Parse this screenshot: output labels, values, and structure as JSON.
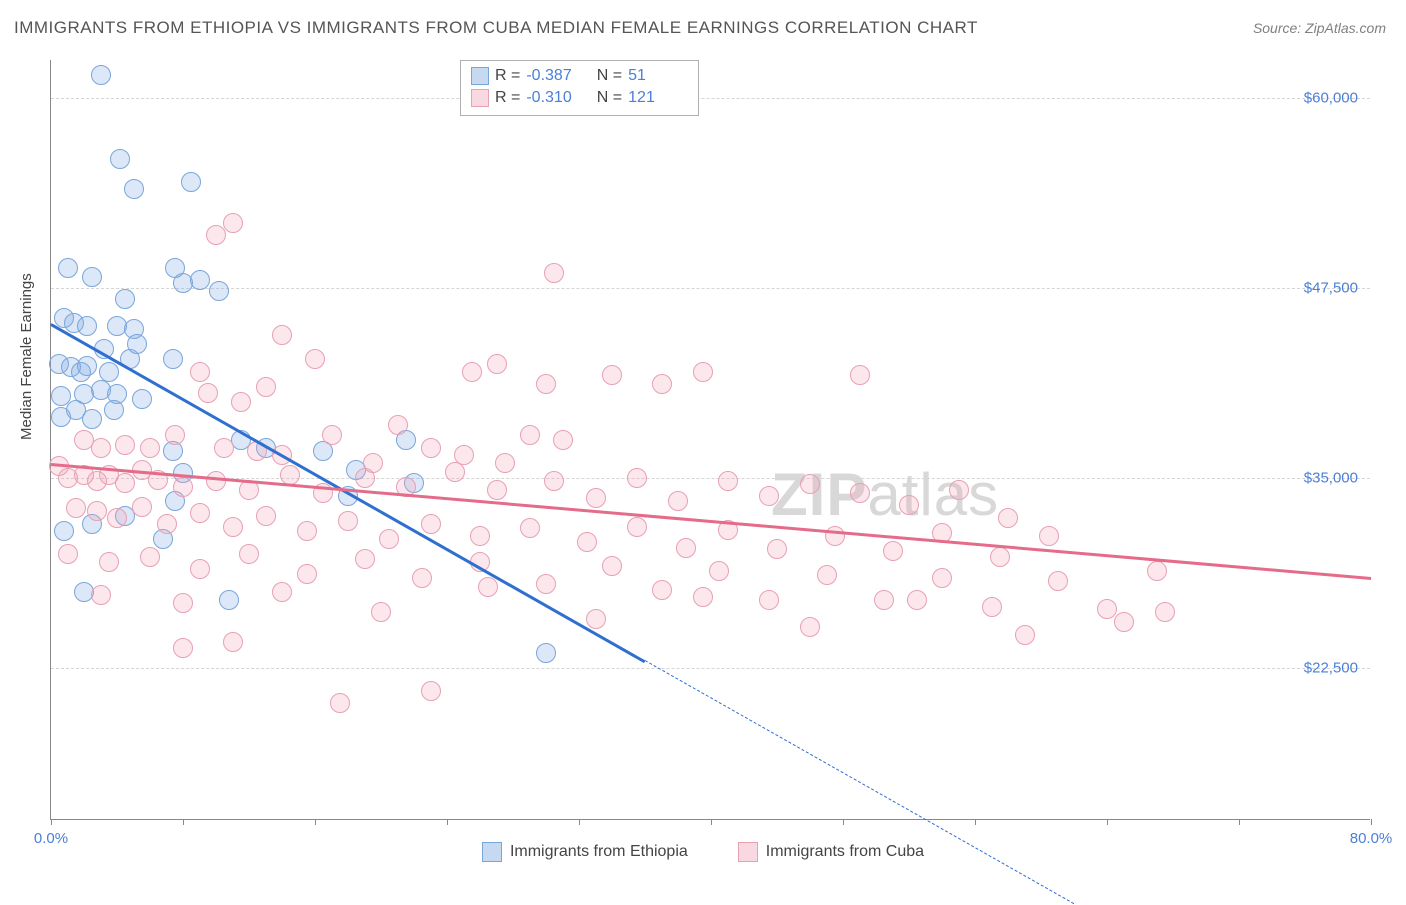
{
  "title": "IMMIGRANTS FROM ETHIOPIA VS IMMIGRANTS FROM CUBA MEDIAN FEMALE EARNINGS CORRELATION CHART",
  "source": "Source: ZipAtlas.com",
  "ylabel": "Median Female Earnings",
  "watermark": {
    "bold": "ZIP",
    "rest": "atlas"
  },
  "chart": {
    "type": "scatter",
    "background_color": "#ffffff",
    "grid_color": "#d5d5d5",
    "xlim": [
      0,
      80
    ],
    "ylim": [
      12500,
      62500
    ],
    "xtick_label_left": "0.0%",
    "xtick_label_right": "80.0%",
    "xtick_positions": [
      0,
      8,
      16,
      24,
      32,
      40,
      48,
      56,
      64,
      72,
      80
    ],
    "yticks": [
      {
        "v": 22500,
        "label": "$22,500"
      },
      {
        "v": 35000,
        "label": "$35,000"
      },
      {
        "v": 47500,
        "label": "$47,500"
      },
      {
        "v": 60000,
        "label": "$60,000"
      }
    ],
    "series": [
      {
        "id": "ethiopia",
        "label": "Immigrants from Ethiopia",
        "color_fill": "rgba(130,170,225,0.45)",
        "color_stroke": "#7aa6db",
        "trend_color": "#2f6fd0",
        "R": "-0.387",
        "N": "51",
        "trend": {
          "x1": 0,
          "y1": 45200,
          "x2": 36,
          "y2": 23000
        },
        "trend_ext": {
          "x1": 36,
          "y1": 23000,
          "x2": 62,
          "y2": 7000
        },
        "points": [
          [
            3.0,
            61500
          ],
          [
            4.2,
            56000
          ],
          [
            5.0,
            54000
          ],
          [
            8.5,
            54500
          ],
          [
            1.0,
            48800
          ],
          [
            2.5,
            48200
          ],
          [
            0.8,
            45500
          ],
          [
            1.4,
            45200
          ],
          [
            2.2,
            45000
          ],
          [
            4.5,
            46800
          ],
          [
            4.0,
            45000
          ],
          [
            5.0,
            44800
          ],
          [
            7.5,
            48800
          ],
          [
            8.0,
            47800
          ],
          [
            9.0,
            48000
          ],
          [
            10.2,
            47300
          ],
          [
            3.2,
            43500
          ],
          [
            0.5,
            42500
          ],
          [
            1.2,
            42300
          ],
          [
            1.8,
            42000
          ],
          [
            2.2,
            42400
          ],
          [
            3.5,
            42000
          ],
          [
            4.8,
            42800
          ],
          [
            5.2,
            43800
          ],
          [
            4.0,
            40500
          ],
          [
            3.0,
            40800
          ],
          [
            2.0,
            40500
          ],
          [
            0.6,
            40400
          ],
          [
            0.6,
            39000
          ],
          [
            1.5,
            39500
          ],
          [
            2.5,
            38900
          ],
          [
            3.8,
            39500
          ],
          [
            5.5,
            40200
          ],
          [
            7.4,
            42800
          ],
          [
            7.4,
            36800
          ],
          [
            8.0,
            35300
          ],
          [
            11.5,
            37500
          ],
          [
            13.0,
            37000
          ],
          [
            16.5,
            36800
          ],
          [
            18.5,
            35500
          ],
          [
            18.0,
            33800
          ],
          [
            21.5,
            37500
          ],
          [
            22.0,
            34700
          ],
          [
            7.5,
            33500
          ],
          [
            4.5,
            32500
          ],
          [
            2.5,
            32000
          ],
          [
            0.8,
            31500
          ],
          [
            6.8,
            31000
          ],
          [
            2.0,
            27500
          ],
          [
            10.8,
            27000
          ],
          [
            30.0,
            23500
          ]
        ]
      },
      {
        "id": "cuba",
        "label": "Immigrants from Cuba",
        "color_fill": "rgba(240,160,180,0.40)",
        "color_stroke": "#e8a0b5",
        "trend_color": "#e56b8a",
        "R": "-0.310",
        "N": "121",
        "trend": {
          "x1": 0,
          "y1": 36000,
          "x2": 80,
          "y2": 28500
        },
        "points": [
          [
            10.0,
            51000
          ],
          [
            11.0,
            51800
          ],
          [
            30.5,
            48500
          ],
          [
            14.0,
            44400
          ],
          [
            16.0,
            42800
          ],
          [
            13.0,
            41000
          ],
          [
            9.0,
            42000
          ],
          [
            9.5,
            40600
          ],
          [
            11.5,
            40000
          ],
          [
            25.5,
            42000
          ],
          [
            27.0,
            42500
          ],
          [
            30.0,
            41200
          ],
          [
            34.0,
            41800
          ],
          [
            37.0,
            41200
          ],
          [
            39.5,
            42000
          ],
          [
            49.0,
            41800
          ],
          [
            2.0,
            37500
          ],
          [
            3.0,
            37000
          ],
          [
            4.5,
            37200
          ],
          [
            6.0,
            37000
          ],
          [
            7.5,
            37800
          ],
          [
            10.5,
            37000
          ],
          [
            12.5,
            36800
          ],
          [
            14.0,
            36500
          ],
          [
            17.0,
            37800
          ],
          [
            19.5,
            36000
          ],
          [
            21.0,
            38500
          ],
          [
            23.0,
            37000
          ],
          [
            25.0,
            36500
          ],
          [
            27.5,
            36000
          ],
          [
            29.0,
            37800
          ],
          [
            31.0,
            37500
          ],
          [
            0.5,
            35800
          ],
          [
            1.0,
            35000
          ],
          [
            2.0,
            35200
          ],
          [
            2.8,
            34800
          ],
          [
            3.5,
            35200
          ],
          [
            4.5,
            34700
          ],
          [
            5.5,
            35500
          ],
          [
            6.5,
            34900
          ],
          [
            8.0,
            34400
          ],
          [
            10.0,
            34800
          ],
          [
            12.0,
            34200
          ],
          [
            14.5,
            35200
          ],
          [
            16.5,
            34000
          ],
          [
            19.0,
            35000
          ],
          [
            21.5,
            34400
          ],
          [
            24.5,
            35400
          ],
          [
            27.0,
            34200
          ],
          [
            30.5,
            34800
          ],
          [
            33.0,
            33700
          ],
          [
            35.5,
            35000
          ],
          [
            38.0,
            33500
          ],
          [
            41.0,
            34800
          ],
          [
            43.5,
            33800
          ],
          [
            46.0,
            34600
          ],
          [
            49.0,
            34000
          ],
          [
            52.0,
            33200
          ],
          [
            55.0,
            34200
          ],
          [
            58.0,
            32400
          ],
          [
            1.5,
            33000
          ],
          [
            2.8,
            32800
          ],
          [
            4.0,
            32400
          ],
          [
            5.5,
            33100
          ],
          [
            7.0,
            32000
          ],
          [
            9.0,
            32700
          ],
          [
            11.0,
            31800
          ],
          [
            13.0,
            32500
          ],
          [
            15.5,
            31500
          ],
          [
            18.0,
            32200
          ],
          [
            20.5,
            31000
          ],
          [
            23.0,
            32000
          ],
          [
            26.0,
            31200
          ],
          [
            29.0,
            31700
          ],
          [
            32.5,
            30800
          ],
          [
            35.5,
            31800
          ],
          [
            38.5,
            30400
          ],
          [
            41.0,
            31600
          ],
          [
            44.0,
            30300
          ],
          [
            47.5,
            31200
          ],
          [
            51.0,
            30200
          ],
          [
            54.0,
            31400
          ],
          [
            57.5,
            29800
          ],
          [
            60.5,
            31200
          ],
          [
            1.0,
            30000
          ],
          [
            3.5,
            29500
          ],
          [
            6.0,
            29800
          ],
          [
            9.0,
            29000
          ],
          [
            12.0,
            30000
          ],
          [
            15.5,
            28700
          ],
          [
            19.0,
            29700
          ],
          [
            22.5,
            28400
          ],
          [
            26.0,
            29500
          ],
          [
            30.0,
            28000
          ],
          [
            34.0,
            29200
          ],
          [
            37.0,
            27600
          ],
          [
            40.5,
            28900
          ],
          [
            43.5,
            27000
          ],
          [
            47.0,
            28600
          ],
          [
            50.5,
            27000
          ],
          [
            54.0,
            28400
          ],
          [
            57.0,
            26500
          ],
          [
            61.0,
            28200
          ],
          [
            64.0,
            26400
          ],
          [
            67.0,
            28900
          ],
          [
            3.0,
            27300
          ],
          [
            8.0,
            26800
          ],
          [
            14.0,
            27500
          ],
          [
            20.0,
            26200
          ],
          [
            26.5,
            27800
          ],
          [
            33.0,
            25700
          ],
          [
            39.5,
            27200
          ],
          [
            46.0,
            25200
          ],
          [
            52.5,
            27000
          ],
          [
            59.0,
            24700
          ],
          [
            65.0,
            25500
          ],
          [
            11.0,
            24200
          ],
          [
            23.0,
            21000
          ],
          [
            17.5,
            20200
          ],
          [
            8.0,
            23800
          ],
          [
            67.5,
            26200
          ]
        ]
      }
    ]
  },
  "legend": [
    {
      "label": "Immigrants from Ethiopia",
      "fill": "rgba(130,170,225,0.45)",
      "stroke": "#7aa6db"
    },
    {
      "label": "Immigrants from Cuba",
      "fill": "rgba(240,160,180,0.40)",
      "stroke": "#e8a0b5"
    }
  ]
}
